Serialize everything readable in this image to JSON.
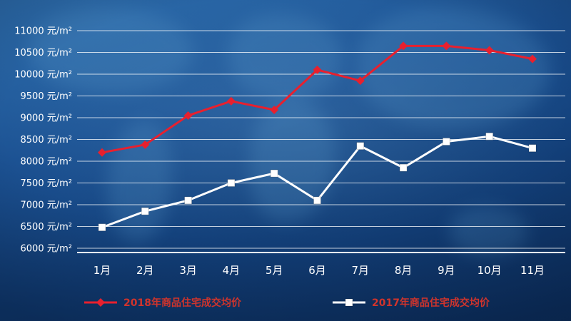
{
  "chart_data": {
    "type": "line",
    "title": "",
    "categories": [
      "1月",
      "2月",
      "3月",
      "4月",
      "5月",
      "6月",
      "7月",
      "8月",
      "9月",
      "10月",
      "11月"
    ],
    "series": [
      {
        "name": "2018年商品住宅成交均价",
        "color": "#e8202e",
        "marker": "diamond",
        "values": [
          8200,
          8380,
          9050,
          9380,
          9180,
          10100,
          9850,
          10650,
          10650,
          10550,
          10350
        ]
      },
      {
        "name": "2017年商品住宅成交均价",
        "color": "#ffffff",
        "marker": "square",
        "values": [
          6480,
          6850,
          7100,
          7500,
          7720,
          7100,
          8350,
          7850,
          8450,
          8570,
          8300
        ]
      }
    ],
    "xlabel": "",
    "ylabel": "",
    "y_unit": "元/m²",
    "yticks": [
      6000,
      6500,
      7000,
      7500,
      8000,
      8500,
      9000,
      9500,
      10000,
      10500,
      11000
    ],
    "ylim": [
      6000,
      11000
    ],
    "grid": true,
    "legend_position": "bottom",
    "colors": {
      "background_top": "#2f6fae",
      "background_bottom": "#0d2f5e",
      "gridline": "rgba(255,255,255,0.75)",
      "axis_line": "#ffffff",
      "tick_text": "#ffffff",
      "legend_text": "#d0342c"
    }
  }
}
